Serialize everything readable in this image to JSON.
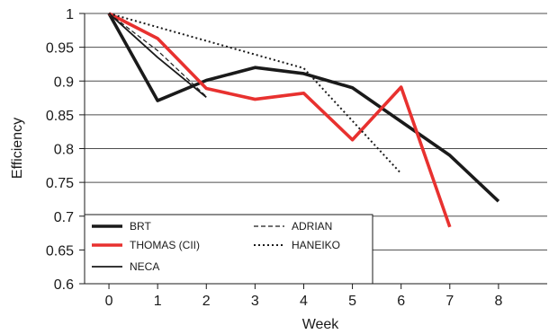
{
  "chart_data": {
    "type": "line",
    "xlabel": "Week",
    "ylabel": "Efficiency",
    "xlim": [
      -0.5,
      9
    ],
    "ylim": [
      0.6,
      1
    ],
    "xticks": [
      0,
      1,
      2,
      3,
      4,
      5,
      6,
      7,
      8
    ],
    "yticks": [
      0.6,
      0.65,
      0.7,
      0.75,
      0.8,
      0.85,
      0.9,
      0.95,
      1
    ],
    "ytick_labels": [
      "0.6",
      "0.65",
      "0.7",
      "0.75",
      "0.8",
      "0.85",
      "0.9",
      "0.95",
      "1"
    ],
    "grid": "horizontal",
    "legend_position": "bottom-left",
    "series": [
      {
        "name": "BRT",
        "style": "solid-thick",
        "color": "#1a1a1a",
        "x": [
          0,
          1,
          2,
          3,
          4,
          5,
          6,
          7,
          8
        ],
        "values": [
          1.0,
          0.871,
          0.901,
          0.92,
          0.911,
          0.89,
          0.84,
          0.79,
          0.722
        ]
      },
      {
        "name": "THOMAS (CII)",
        "style": "solid-thick",
        "color": "#e8312f",
        "x": [
          0,
          1,
          2,
          3,
          4,
          5,
          6,
          7
        ],
        "values": [
          1.0,
          0.963,
          0.889,
          0.873,
          0.882,
          0.813,
          0.891,
          0.684
        ]
      },
      {
        "name": "NECA",
        "style": "solid-thin",
        "color": "#1a1a1a",
        "x": [
          0,
          1,
          2
        ],
        "values": [
          1.0,
          0.935,
          0.876
        ]
      },
      {
        "name": "ADRIAN",
        "style": "dashed",
        "color": "#1a1a1a",
        "x": [
          0,
          1,
          2
        ],
        "values": [
          1.0,
          0.945,
          0.877
        ]
      },
      {
        "name": "HANEIKO",
        "style": "dotted",
        "color": "#1a1a1a",
        "x": [
          0,
          4,
          6
        ],
        "values": [
          1.0,
          0.919,
          0.763
        ]
      }
    ]
  }
}
